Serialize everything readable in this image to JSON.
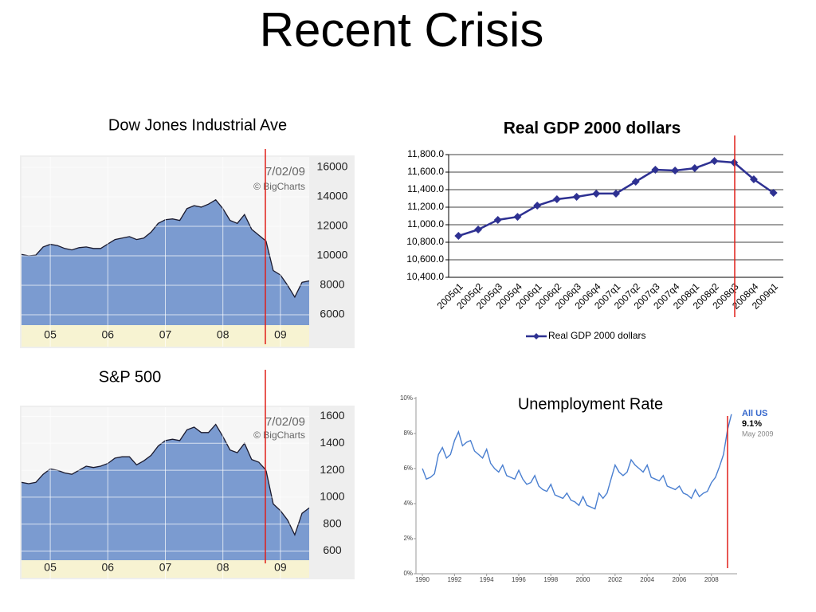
{
  "title": "Recent Crisis",
  "chart_data": [
    {
      "type": "area",
      "title": "Dow Jones Industrial Ave",
      "color": "#7b9bd0",
      "annotations": [
        "7/02/09",
        "© BigCharts"
      ],
      "x": [
        2004.5,
        2004.625,
        2004.75,
        2004.875,
        2005,
        2005.125,
        2005.25,
        2005.375,
        2005.5,
        2005.625,
        2005.75,
        2005.875,
        2006,
        2006.125,
        2006.25,
        2006.375,
        2006.5,
        2006.625,
        2006.75,
        2006.875,
        2007,
        2007.125,
        2007.25,
        2007.375,
        2007.5,
        2007.625,
        2007.75,
        2007.875,
        2008,
        2008.125,
        2008.25,
        2008.375,
        2008.5,
        2008.625,
        2008.75,
        2008.875,
        2009,
        2009.125,
        2009.25,
        2009.375,
        2009.5
      ],
      "values": [
        10100,
        10000,
        10050,
        10600,
        10780,
        10700,
        10500,
        10400,
        10550,
        10600,
        10500,
        10500,
        10800,
        11100,
        11200,
        11300,
        11100,
        11200,
        11600,
        12200,
        12450,
        12500,
        12400,
        13200,
        13400,
        13300,
        13500,
        13800,
        13200,
        12400,
        12200,
        12800,
        11800,
        11400,
        11000,
        9000,
        8700,
        8000,
        7200,
        8200,
        8300
      ],
      "xlim": [
        2004.5,
        2009.5
      ],
      "xticks": [
        {
          "value": 2005,
          "label": "05"
        },
        {
          "value": 2006,
          "label": "06"
        },
        {
          "value": 2007,
          "label": "07"
        },
        {
          "value": 2008,
          "label": "08"
        },
        {
          "value": 2009,
          "label": "09"
        }
      ],
      "ylim": [
        5300,
        16700
      ],
      "yticks": [
        6000,
        8000,
        10000,
        12000,
        14000,
        16000
      ],
      "grid": true
    },
    {
      "type": "area",
      "title": "S&P 500",
      "color": "#7b9bd0",
      "annotations": [
        "7/02/09",
        "© BigCharts"
      ],
      "x": [
        2004.5,
        2004.625,
        2004.75,
        2004.875,
        2005,
        2005.125,
        2005.25,
        2005.375,
        2005.5,
        2005.625,
        2005.75,
        2005.875,
        2006,
        2006.125,
        2006.25,
        2006.375,
        2006.5,
        2006.625,
        2006.75,
        2006.875,
        2007,
        2007.125,
        2007.25,
        2007.375,
        2007.5,
        2007.625,
        2007.75,
        2007.875,
        2008,
        2008.125,
        2008.25,
        2008.375,
        2008.5,
        2008.625,
        2008.75,
        2008.875,
        2009,
        2009.125,
        2009.25,
        2009.375,
        2009.5
      ],
      "values": [
        1110,
        1100,
        1110,
        1170,
        1210,
        1200,
        1180,
        1170,
        1200,
        1230,
        1220,
        1230,
        1250,
        1290,
        1300,
        1300,
        1240,
        1270,
        1310,
        1380,
        1420,
        1430,
        1420,
        1500,
        1520,
        1480,
        1480,
        1540,
        1450,
        1350,
        1330,
        1400,
        1280,
        1260,
        1200,
        950,
        900,
        830,
        720,
        880,
        920
      ],
      "xlim": [
        2004.5,
        2009.5
      ],
      "xticks": [
        {
          "value": 2005,
          "label": "05"
        },
        {
          "value": 2006,
          "label": "06"
        },
        {
          "value": 2007,
          "label": "07"
        },
        {
          "value": 2008,
          "label": "08"
        },
        {
          "value": 2009,
          "label": "09"
        }
      ],
      "ylim": [
        532,
        1668
      ],
      "yticks": [
        600,
        800,
        1000,
        1200,
        1400,
        1600
      ],
      "grid": true
    },
    {
      "type": "line",
      "title": "Real GDP 2000 dollars",
      "legend": "bottom",
      "categories": [
        "2005q1",
        "2005q2",
        "2005q3",
        "2005q4",
        "2006q1",
        "2006q2",
        "2006q3",
        "2006q4",
        "2007q1",
        "2007q2",
        "2007q3",
        "2007q4",
        "2008q1",
        "2008q2",
        "2008q3",
        "2008q4",
        "2009q1"
      ],
      "series": [
        {
          "name": "Real GDP 2000 dollars",
          "color": "#2e3192",
          "values": [
            10873,
            10945,
            11055,
            11090,
            11218,
            11291,
            11318,
            11355,
            11355,
            11491,
            11627,
            11618,
            11645,
            11727,
            11709,
            11518,
            11364
          ]
        }
      ],
      "ylim": [
        10400,
        11800
      ],
      "yticks": [
        {
          "value": 10400,
          "label": "10,400.0"
        },
        {
          "value": 10600,
          "label": "10,600.0"
        },
        {
          "value": 10800,
          "label": "10,800.0"
        },
        {
          "value": 11000,
          "label": "11,000.0"
        },
        {
          "value": 11200,
          "label": "11,200.0"
        },
        {
          "value": 11400,
          "label": "11,400.0"
        },
        {
          "value": 11600,
          "label": "11,600.0"
        },
        {
          "value": 11800,
          "label": "11,800.0"
        }
      ],
      "grid": true
    },
    {
      "type": "line",
      "title": "Unemployment Rate",
      "annotations": [
        "9.1%",
        "May 2009"
      ],
      "x": [
        1990,
        1990.25,
        1990.5,
        1990.75,
        1991,
        1991.25,
        1991.5,
        1991.75,
        1992,
        1992.25,
        1992.5,
        1992.75,
        1993,
        1993.25,
        1993.5,
        1993.75,
        1994,
        1994.25,
        1994.5,
        1994.75,
        1995,
        1995.25,
        1995.5,
        1995.75,
        1996,
        1996.25,
        1996.5,
        1996.75,
        1997,
        1997.25,
        1997.5,
        1997.75,
        1998,
        1998.25,
        1998.5,
        1998.75,
        1999,
        1999.25,
        1999.5,
        1999.75,
        2000,
        2000.25,
        2000.5,
        2000.75,
        2001,
        2001.25,
        2001.5,
        2001.75,
        2002,
        2002.25,
        2002.5,
        2002.75,
        2003,
        2003.25,
        2003.5,
        2003.75,
        2004,
        2004.25,
        2004.5,
        2004.75,
        2005,
        2005.25,
        2005.5,
        2005.75,
        2006,
        2006.25,
        2006.5,
        2006.75,
        2007,
        2007.25,
        2007.5,
        2007.75,
        2008,
        2008.25,
        2008.5,
        2008.75,
        2009,
        2009.25
      ],
      "series": [
        {
          "name": "All US",
          "color": "#4a7fd0",
          "values": [
            6.0,
            5.4,
            5.5,
            5.7,
            6.8,
            7.2,
            6.6,
            6.8,
            7.6,
            8.1,
            7.3,
            7.5,
            7.6,
            7.0,
            6.8,
            6.6,
            7.1,
            6.3,
            6.0,
            5.8,
            6.2,
            5.6,
            5.5,
            5.4,
            5.9,
            5.4,
            5.1,
            5.2,
            5.6,
            5.0,
            4.8,
            4.7,
            5.1,
            4.5,
            4.4,
            4.3,
            4.6,
            4.2,
            4.1,
            3.9,
            4.4,
            3.9,
            3.8,
            3.7,
            4.6,
            4.3,
            4.6,
            5.4,
            6.2,
            5.8,
            5.6,
            5.8,
            6.5,
            6.2,
            6.0,
            5.8,
            6.2,
            5.5,
            5.4,
            5.3,
            5.6,
            5.0,
            4.9,
            4.8,
            5.0,
            4.6,
            4.5,
            4.3,
            4.8,
            4.4,
            4.6,
            4.7,
            5.2,
            5.5,
            6.1,
            6.8,
            8.2,
            9.1
          ]
        }
      ],
      "xlim": [
        1989.6,
        2009.6
      ],
      "xticks": [
        1990,
        1992,
        1994,
        1996,
        1998,
        2000,
        2002,
        2004,
        2006,
        2008
      ],
      "ylim": [
        0,
        10
      ],
      "yticks": [
        {
          "value": 0,
          "label": "0%"
        },
        {
          "value": 2,
          "label": "2%"
        },
        {
          "value": 4,
          "label": "4%"
        },
        {
          "value": 6,
          "label": "6%"
        },
        {
          "value": 8,
          "label": "8%"
        },
        {
          "value": 10,
          "label": "10%"
        }
      ],
      "grid": false
    }
  ]
}
